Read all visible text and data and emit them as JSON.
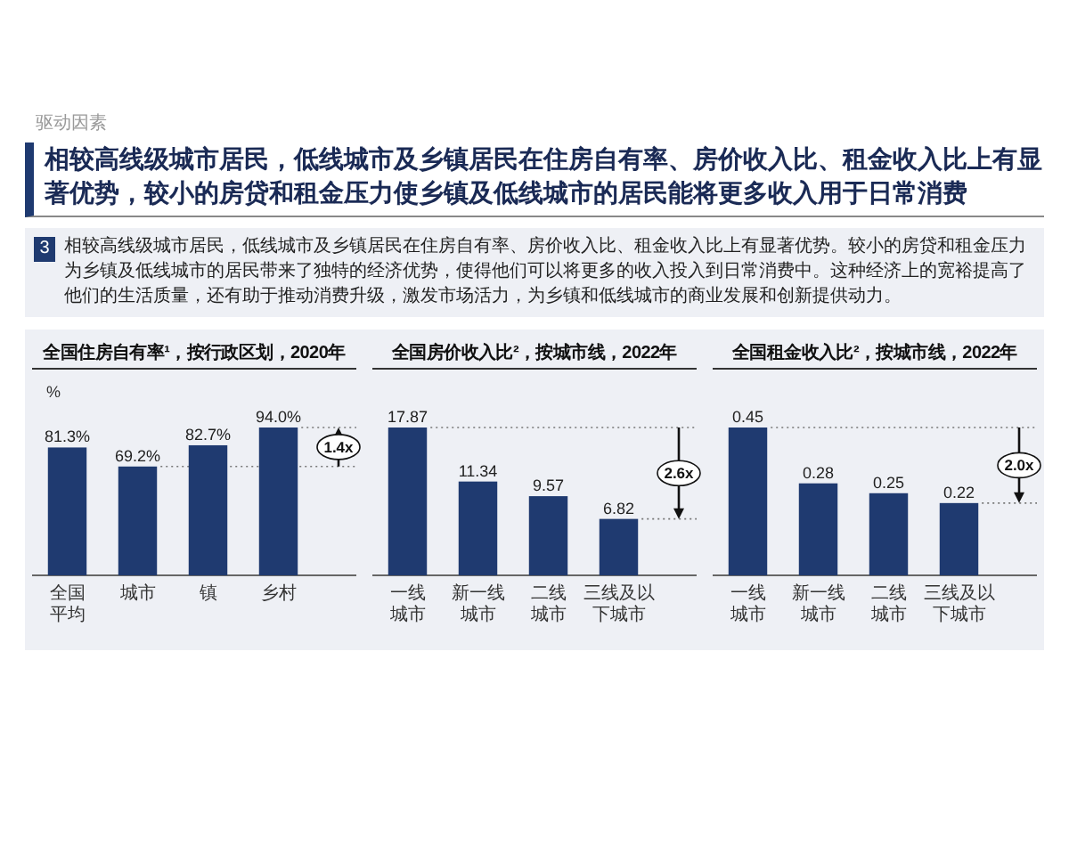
{
  "chart_data": [
    {
      "type": "other",
      "title": "相较高线级城市居民，低线城市及乡镇居民在住房自有率、房价收入比、租金收入比上有显著优势，较小的房贷和租金压力使乡镇及低线城市的居民能将更多收入用于日常消费",
      "annotations": [
        "驱动因素",
        "3",
        "相较高线级城市居民，低线城市及乡镇居民在住房自有率、房价收入比、租金收入比上有显著优势。较小的房贷和租金压力为乡镇及低线城市的居民带来了独特的经济优势，使得他们可以将更多的收入投入到日常消费中。这种经济上的宽裕提高了他们的生活质量，还有助于推动消费升级，激发市场活力，为乡镇和低线城市的商业发展和创新提供动力。"
      ]
    },
    {
      "type": "bar",
      "title": "全国住房自有率¹，按行政区划，2020年",
      "ylabel": "%",
      "categories": [
        "全国平均",
        "城市",
        "镇",
        "乡村"
      ],
      "values": [
        81.3,
        69.2,
        82.7,
        94.0
      ],
      "color": "#1f3a70",
      "value_labels": [
        "81.3%",
        "69.2%",
        "82.7%",
        "94.0%"
      ],
      "ref_lines": [
        {
          "axis": "y",
          "value": 69.2,
          "line_style": "dotted"
        },
        {
          "axis": "y",
          "value": 94.0,
          "line_style": "dotted"
        }
      ],
      "annotations": [
        "1.4x"
      ]
    },
    {
      "type": "bar",
      "title": "全国房价收入比²，按城市线，2022年",
      "categories": [
        "一线城市",
        "新一线城市",
        "二线城市",
        "三线及以下城市"
      ],
      "values": [
        17.87,
        11.34,
        9.57,
        6.82
      ],
      "color": "#1f3a70",
      "data_labels": true,
      "ref_lines": [
        {
          "axis": "y",
          "value": 17.87,
          "line_style": "dotted"
        },
        {
          "axis": "y",
          "value": 6.82,
          "line_style": "dotted"
        }
      ],
      "annotations": [
        "2.6x"
      ]
    },
    {
      "type": "bar",
      "title": "全国租金收入比²，按城市线，2022年",
      "categories": [
        "一线城市",
        "新一线城市",
        "二线城市",
        "三线及以下城市"
      ],
      "values": [
        0.45,
        0.28,
        0.25,
        0.22
      ],
      "color": "#1f3a70",
      "data_labels": true,
      "ref_lines": [
        {
          "axis": "y",
          "value": 0.45,
          "line_style": "dotted"
        },
        {
          "axis": "y",
          "value": 0.22,
          "line_style": "dotted"
        }
      ],
      "annotations": [
        "2.0x"
      ]
    }
  ]
}
